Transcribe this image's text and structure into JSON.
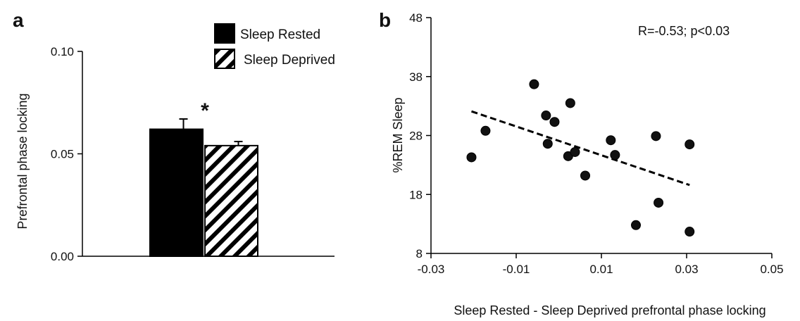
{
  "chart_data": [
    {
      "panel": "a",
      "type": "bar",
      "title": "",
      "ylabel": "Prefrontal phase locking",
      "xlabel": "",
      "ylim": [
        0,
        0.1
      ],
      "yticks": [
        "0.00",
        "0.05",
        "0.10"
      ],
      "series": [
        {
          "name": "Sleep Rested",
          "value": 0.062,
          "error": 0.005,
          "fill": "solid",
          "color": "#000000"
        },
        {
          "name": "Sleep Deprived",
          "value": 0.054,
          "error": 0.002,
          "fill": "hatched",
          "color": "#000000"
        }
      ],
      "significance": "*",
      "legend": "top-right",
      "grid": false
    },
    {
      "panel": "b",
      "type": "scatter",
      "title": "",
      "xlabel": "Sleep Rested - Sleep Deprived prefrontal phase locking",
      "ylabel": "%REM Sleep",
      "xlim": [
        -0.03,
        0.05
      ],
      "ylim": [
        8,
        48
      ],
      "xticks": [
        "-0.03",
        "-0.01",
        "0.01",
        "0.03",
        "0.05"
      ],
      "yticks": [
        "8",
        "18",
        "28",
        "38",
        "48"
      ],
      "annotation": "R=-0.53; p<0.03",
      "points": [
        {
          "x": -0.0205,
          "y": 24.3
        },
        {
          "x": -0.0172,
          "y": 28.8
        },
        {
          "x": -0.0058,
          "y": 36.7
        },
        {
          "x": -0.003,
          "y": 31.4
        },
        {
          "x": -0.0026,
          "y": 26.6
        },
        {
          "x": -0.001,
          "y": 30.3
        },
        {
          "x": 0.0022,
          "y": 24.5
        },
        {
          "x": 0.0027,
          "y": 33.5
        },
        {
          "x": 0.0038,
          "y": 25.2
        },
        {
          "x": 0.0062,
          "y": 21.2
        },
        {
          "x": 0.0122,
          "y": 27.2
        },
        {
          "x": 0.0132,
          "y": 24.7
        },
        {
          "x": 0.0181,
          "y": 12.8
        },
        {
          "x": 0.0228,
          "y": 27.9
        },
        {
          "x": 0.0234,
          "y": 16.6
        },
        {
          "x": 0.0307,
          "y": 26.5
        },
        {
          "x": 0.0307,
          "y": 11.7
        }
      ],
      "trendline": {
        "style": "dashed",
        "x": [
          -0.0205,
          0.0307
        ],
        "y": [
          32.1,
          19.6
        ]
      },
      "grid": false
    }
  ]
}
